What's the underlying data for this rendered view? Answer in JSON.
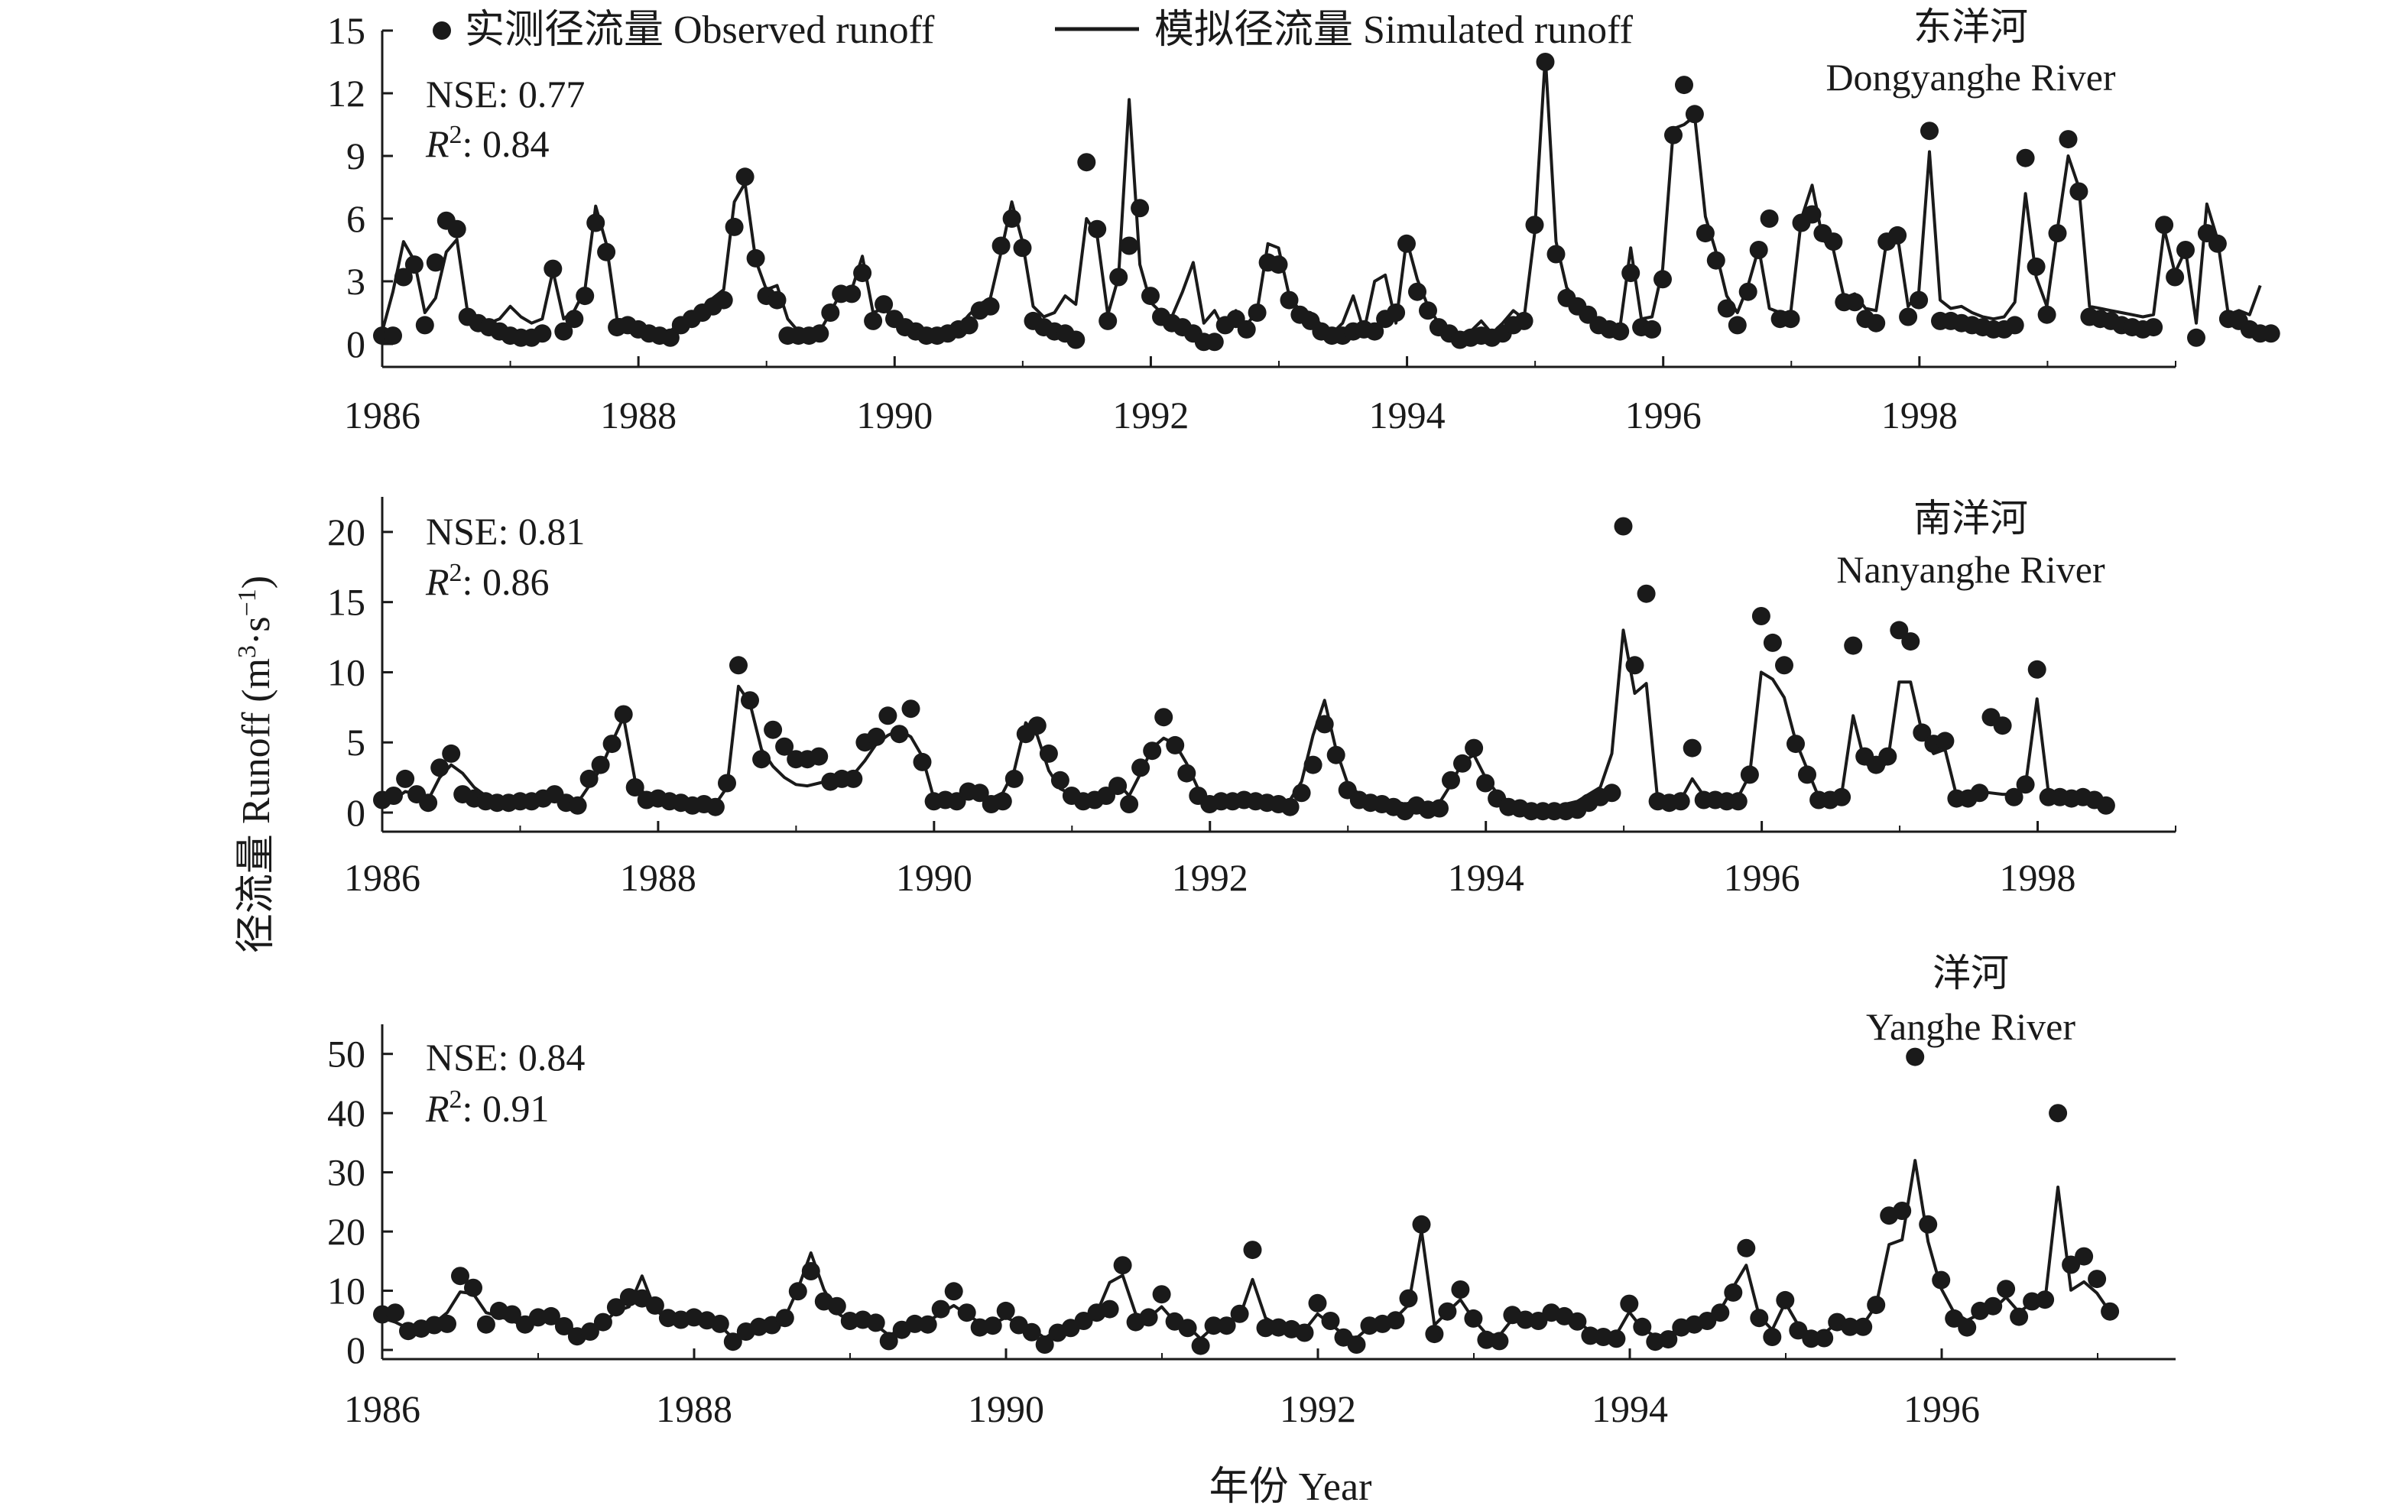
{
  "legend": {
    "observed": "实测径流量 Observed runoff",
    "simulated": "模拟径流量 Simulated runoff"
  },
  "y_axis_title": {
    "prefix": "径流量 Runoff (m",
    "sup1": "3",
    "mid": "·s",
    "sup2": "−1",
    "suffix": ")"
  },
  "x_axis_title": "年份 Year",
  "colors": {
    "ink": "#1a1a1a",
    "background": "#ffffff"
  },
  "chart_data": [
    {
      "type": "line",
      "river_cn": "东洋河",
      "river_en": "Dongyanghe River",
      "nse_label": "NSE: 0.77",
      "r2_label": "R",
      "r2_sup": "2",
      "r2_value": ": 0.84",
      "xlim": [
        1986,
        2000
      ],
      "ylim": [
        0,
        15
      ],
      "xticks": [
        1986,
        1988,
        1990,
        1992,
        1994,
        1996,
        1998
      ],
      "yticks": [
        0,
        3,
        6,
        9,
        12,
        15
      ],
      "x_start": 1986.0,
      "x_step": 0.0833,
      "observed": [
        0.4,
        0.4,
        3.2,
        3.8,
        0.9,
        3.9,
        5.9,
        5.5,
        1.3,
        1.0,
        0.8,
        0.6,
        0.4,
        0.3,
        0.3,
        0.5,
        3.6,
        0.6,
        1.2,
        2.3,
        5.8,
        4.4,
        0.8,
        0.9,
        0.7,
        0.5,
        0.4,
        0.3,
        0.9,
        1.2,
        1.5,
        1.8,
        2.1,
        5.6,
        8.0,
        4.1,
        2.3,
        2.1,
        0.4,
        0.4,
        0.4,
        0.5,
        1.5,
        2.4,
        2.4,
        3.4,
        1.1,
        1.9,
        1.2,
        0.8,
        0.6,
        0.4,
        0.4,
        0.5,
        0.7,
        0.9,
        1.6,
        1.8,
        4.7,
        6.0,
        4.6,
        1.1,
        0.8,
        0.6,
        0.5,
        0.2,
        8.7,
        5.5,
        1.1,
        3.2,
        4.7,
        6.5,
        2.3,
        1.3,
        1.0,
        0.8,
        0.5,
        0.1,
        0.1,
        0.9,
        1.2,
        0.7,
        1.5,
        3.9,
        3.8,
        2.1,
        1.4,
        1.1,
        0.6,
        0.4,
        0.4,
        0.6,
        0.7,
        0.6,
        1.2,
        1.5,
        4.8,
        2.5,
        1.6,
        0.8,
        0.5,
        0.2,
        0.3,
        0.4,
        0.3,
        0.5,
        0.9,
        1.1,
        5.7,
        13.5,
        4.3,
        2.2,
        1.8,
        1.4,
        0.9,
        0.7,
        0.6,
        3.4,
        0.8,
        0.7,
        3.1,
        10.0,
        12.4,
        11.0,
        5.3,
        4.0,
        1.7,
        0.9,
        2.5,
        4.5,
        6.0,
        1.2,
        1.2,
        5.8,
        6.2,
        5.3,
        4.9,
        2.0,
        2.0,
        1.2,
        1.0,
        4.9,
        5.2,
        1.3,
        2.1,
        10.2,
        1.1,
        1.1,
        1.0,
        0.9,
        0.8,
        0.7,
        0.7,
        0.9,
        8.9,
        3.7,
        1.4,
        5.3,
        9.8,
        7.3,
        1.3,
        1.2,
        1.1,
        0.9,
        0.8,
        0.7,
        0.8,
        5.7,
        3.2,
        4.5,
        0.3,
        5.3,
        4.8,
        1.2,
        1.1,
        0.7,
        0.5,
        0.5
      ],
      "simulated": [
        0.6,
        2.5,
        4.9,
        4.0,
        1.5,
        2.2,
        4.4,
        5.0,
        1.5,
        1.2,
        1.0,
        1.2,
        1.8,
        1.3,
        1.0,
        1.2,
        3.5,
        1.2,
        1.6,
        2.6,
        6.6,
        4.8,
        1.2,
        1.1,
        0.9,
        0.7,
        0.6,
        0.6,
        1.1,
        1.5,
        1.7,
        2.2,
        2.6,
        6.8,
        7.7,
        4.0,
        2.6,
        2.8,
        1.2,
        0.6,
        0.5,
        0.6,
        1.5,
        2.5,
        2.6,
        4.2,
        1.5,
        1.7,
        1.2,
        1.0,
        0.8,
        0.6,
        0.5,
        0.6,
        0.8,
        1.4,
        1.9,
        2.2,
        4.4,
        6.8,
        4.9,
        1.8,
        1.3,
        1.5,
        2.3,
        1.9,
        6.0,
        5.2,
        1.4,
        3.2,
        11.7,
        3.8,
        2.0,
        1.5,
        1.3,
        2.5,
        3.9,
        1.0,
        1.6,
        0.6,
        1.6,
        0.9,
        1.6,
        4.8,
        4.6,
        2.3,
        1.6,
        1.5,
        0.9,
        0.5,
        1.0,
        2.3,
        0.6,
        3.0,
        3.3,
        1.0,
        5.0,
        3.1,
        1.8,
        1.0,
        0.7,
        0.5,
        0.6,
        1.1,
        0.5,
        1.0,
        1.6,
        1.2,
        5.3,
        13.8,
        4.9,
        2.7,
        2.0,
        1.6,
        1.1,
        0.9,
        0.8,
        4.6,
        1.2,
        1.3,
        3.6,
        10.3,
        10.5,
        10.9,
        6.1,
        4.4,
        2.3,
        1.5,
        2.8,
        4.6,
        1.7,
        1.5,
        1.5,
        6.0,
        7.6,
        5.0,
        4.5,
        2.2,
        2.4,
        1.7,
        1.6,
        5.0,
        5.2,
        1.8,
        2.5,
        9.2,
        2.1,
        1.7,
        1.8,
        1.5,
        1.3,
        1.2,
        1.3,
        2.0,
        7.2,
        3.2,
        1.8,
        5.5,
        9.0,
        7.5,
        1.8,
        1.7,
        1.6,
        1.5,
        1.4,
        1.3,
        1.4,
        5.5,
        3.4,
        4.5,
        1.0,
        6.7,
        5.0,
        1.4,
        1.6,
        1.4,
        2.8
      ]
    },
    {
      "type": "line",
      "river_cn": "南洋河",
      "river_en": "Nanyanghe River",
      "nse_label": "NSE: 0.81",
      "r2_label": "R",
      "r2_sup": "2",
      "r2_value": ": 0.86",
      "xlim": [
        1986,
        1999
      ],
      "ylim": [
        0,
        22.5
      ],
      "xticks": [
        1986,
        1988,
        1990,
        1992,
        1994,
        1996,
        1998
      ],
      "yticks": [
        0,
        5,
        10,
        15,
        20
      ],
      "x_start": 1986.0,
      "x_step": 0.0833,
      "observed": [
        0.9,
        1.2,
        2.4,
        1.3,
        0.7,
        3.2,
        4.2,
        1.3,
        1.0,
        0.8,
        0.7,
        0.7,
        0.8,
        0.8,
        1.0,
        1.3,
        0.7,
        0.5,
        2.4,
        3.4,
        4.9,
        7.0,
        1.8,
        0.9,
        1.0,
        0.8,
        0.7,
        0.5,
        0.6,
        0.4,
        2.1,
        10.5,
        8.0,
        3.8,
        5.9,
        4.7,
        3.8,
        3.8,
        4.0,
        2.2,
        2.4,
        2.4,
        5.0,
        5.4,
        6.9,
        5.6,
        7.4,
        3.6,
        0.8,
        0.9,
        0.8,
        1.5,
        1.4,
        0.6,
        0.8,
        2.4,
        5.6,
        6.2,
        4.2,
        2.3,
        1.2,
        0.8,
        0.9,
        1.2,
        1.9,
        0.6,
        3.2,
        4.4,
        6.8,
        4.8,
        2.8,
        1.2,
        0.6,
        0.8,
        0.8,
        0.9,
        0.8,
        0.7,
        0.6,
        0.4,
        1.4,
        3.4,
        6.3,
        4.1,
        1.6,
        0.9,
        0.7,
        0.6,
        0.4,
        0.1,
        0.5,
        0.2,
        0.3,
        2.3,
        3.5,
        4.6,
        2.1,
        1.0,
        0.4,
        0.3,
        0.1,
        0.1,
        0.1,
        0.1,
        0.2,
        0.7,
        1.1,
        1.4,
        20.4,
        10.5,
        15.6,
        0.8,
        0.7,
        0.8,
        4.6,
        0.9,
        0.9,
        0.8,
        0.8,
        2.7,
        14.0,
        12.1,
        10.5,
        4.9,
        2.7,
        0.9,
        0.9,
        1.1,
        11.9,
        4.0,
        3.4,
        4.0,
        13.0,
        12.2,
        5.7,
        4.9,
        5.1,
        1.0,
        1.0,
        1.4,
        6.8,
        6.2,
        1.1,
        2.0,
        10.2,
        1.1,
        1.1,
        1.0,
        1.1,
        0.9,
        0.5
      ],
      "simulated": [
        0.8,
        0.9,
        1.5,
        1.3,
        0.9,
        2.5,
        3.4,
        2.8,
        1.8,
        1.2,
        0.9,
        0.8,
        0.8,
        0.8,
        0.9,
        1.1,
        0.8,
        0.7,
        1.9,
        3.1,
        5.0,
        6.8,
        2.3,
        1.1,
        1.0,
        0.9,
        0.8,
        0.7,
        0.7,
        0.6,
        1.8,
        9.0,
        7.8,
        4.5,
        3.3,
        2.5,
        2.0,
        1.9,
        2.1,
        2.3,
        2.6,
        2.7,
        3.7,
        4.9,
        5.5,
        5.9,
        5.4,
        4.0,
        1.0,
        1.1,
        1.2,
        1.5,
        1.4,
        1.0,
        1.4,
        3.0,
        6.4,
        5.5,
        3.0,
        1.7,
        1.3,
        1.1,
        1.1,
        1.4,
        2.1,
        1.2,
        2.8,
        4.6,
        5.3,
        4.9,
        3.5,
        1.7,
        0.9,
        0.9,
        0.9,
        1.0,
        0.9,
        0.8,
        0.8,
        0.9,
        2.2,
        5.5,
        8.0,
        4.5,
        2.1,
        1.3,
        1.0,
        0.9,
        0.8,
        0.6,
        0.8,
        0.6,
        0.7,
        2.0,
        3.6,
        4.1,
        2.5,
        1.4,
        0.8,
        0.6,
        0.4,
        0.5,
        0.4,
        0.6,
        0.8,
        1.3,
        1.8,
        4.2,
        13.0,
        8.5,
        9.2,
        0.8,
        0.7,
        0.9,
        2.4,
        1.2,
        1.1,
        1.1,
        1.1,
        2.7,
        10.0,
        9.5,
        8.2,
        5.1,
        3.1,
        1.1,
        1.1,
        1.3,
        6.9,
        3.6,
        2.9,
        3.6,
        9.3,
        9.3,
        5.7,
        4.2,
        4.5,
        1.2,
        1.2,
        1.5,
        1.4,
        1.3,
        1.3,
        1.9,
        8.1,
        1.4,
        1.2,
        1.1,
        1.2,
        1.0,
        0.8
      ]
    },
    {
      "type": "line",
      "river_cn": "洋河",
      "river_en": "Yanghe River",
      "nse_label": "NSE: 0.84",
      "r2_label": "R",
      "r2_sup": "2",
      "r2_value": ": 0.91",
      "xlim": [
        1986,
        1997.5
      ],
      "ylim": [
        0,
        55
      ],
      "xticks": [
        1986,
        1988,
        1990,
        1992,
        1994,
        1996
      ],
      "yticks": [
        0,
        10,
        20,
        30,
        40,
        50
      ],
      "x_start": 1986.0,
      "x_step": 0.0833,
      "observed": [
        6.0,
        6.3,
        3.2,
        3.6,
        4.2,
        4.4,
        12.5,
        10.5,
        4.3,
        6.6,
        6.0,
        4.3,
        5.5,
        5.7,
        4.0,
        2.3,
        3.1,
        4.7,
        7.2,
        8.9,
        8.7,
        7.5,
        5.4,
        5.1,
        5.5,
        5.0,
        4.4,
        1.4,
        3.1,
        3.9,
        4.2,
        5.4,
        9.9,
        13.3,
        8.2,
        7.4,
        4.9,
        5.1,
        4.6,
        1.5,
        3.4,
        4.4,
        4.3,
        6.9,
        9.9,
        6.3,
        3.8,
        4.1,
        6.6,
        4.2,
        3.0,
        0.9,
        2.9,
        3.7,
        4.9,
        6.3,
        6.9,
        14.3,
        4.7,
        5.5,
        9.4,
        4.8,
        3.7,
        0.7,
        4.1,
        4.1,
        6.1,
        16.9,
        3.7,
        3.8,
        3.5,
        2.9,
        7.9,
        4.9,
        2.1,
        0.9,
        4.1,
        4.4,
        5.0,
        8.7,
        21.2,
        2.7,
        6.5,
        10.2,
        5.3,
        1.7,
        1.5,
        5.9,
        5.1,
        4.9,
        6.3,
        5.7,
        4.8,
        2.4,
        2.2,
        1.9,
        7.8,
        3.9,
        1.4,
        1.8,
        3.8,
        4.3,
        4.9,
        6.3,
        9.7,
        17.2,
        5.4,
        2.2,
        8.4,
        3.3,
        1.9,
        2.0,
        4.7,
        3.9,
        3.9,
        7.6,
        22.7,
        23.5,
        49.5,
        21.2,
        11.8,
        5.3,
        3.8,
        6.6,
        7.4,
        10.3,
        5.6,
        8.2,
        8.5,
        40.0,
        14.4,
        15.8,
        12.0,
        6.5
      ],
      "simulated": [
        5.4,
        4.7,
        3.6,
        3.9,
        4.5,
        6.3,
        9.8,
        9.5,
        6.3,
        5.7,
        4.9,
        4.1,
        4.9,
        5.4,
        4.6,
        3.0,
        3.1,
        4.5,
        6.5,
        7.3,
        12.5,
        6.8,
        5.1,
        4.8,
        4.9,
        4.6,
        4.1,
        2.0,
        3.0,
        3.9,
        4.4,
        5.5,
        10.3,
        16.4,
        10.2,
        6.3,
        4.8,
        4.6,
        4.2,
        2.5,
        3.4,
        4.3,
        4.8,
        6.2,
        7.5,
        6.0,
        4.6,
        4.4,
        5.5,
        4.5,
        3.6,
        2.0,
        3.4,
        3.9,
        4.9,
        6.2,
        11.4,
        12.6,
        6.1,
        5.4,
        7.3,
        4.8,
        4.0,
        1.9,
        3.9,
        4.5,
        5.5,
        11.9,
        5.4,
        4.2,
        3.9,
        3.3,
        6.1,
        4.4,
        2.6,
        2.0,
        3.9,
        4.5,
        5.4,
        7.6,
        20.2,
        4.2,
        6.4,
        8.5,
        5.2,
        2.7,
        2.4,
        5.2,
        5.0,
        4.9,
        5.9,
        5.6,
        4.9,
        3.1,
        2.9,
        2.6,
        6.4,
        3.6,
        2.3,
        2.6,
        3.7,
        4.4,
        5.2,
        6.7,
        10.6,
        14.3,
        5.7,
        3.4,
        8.0,
        4.2,
        2.6,
        2.8,
        4.6,
        4.1,
        4.3,
        7.5,
        17.8,
        18.6,
        32.0,
        18.3,
        10.4,
        6.3,
        5.0,
        6.1,
        6.8,
        8.9,
        6.4,
        7.9,
        8.2,
        27.5,
        10.1,
        11.5,
        9.6,
        6.4
      ]
    }
  ]
}
